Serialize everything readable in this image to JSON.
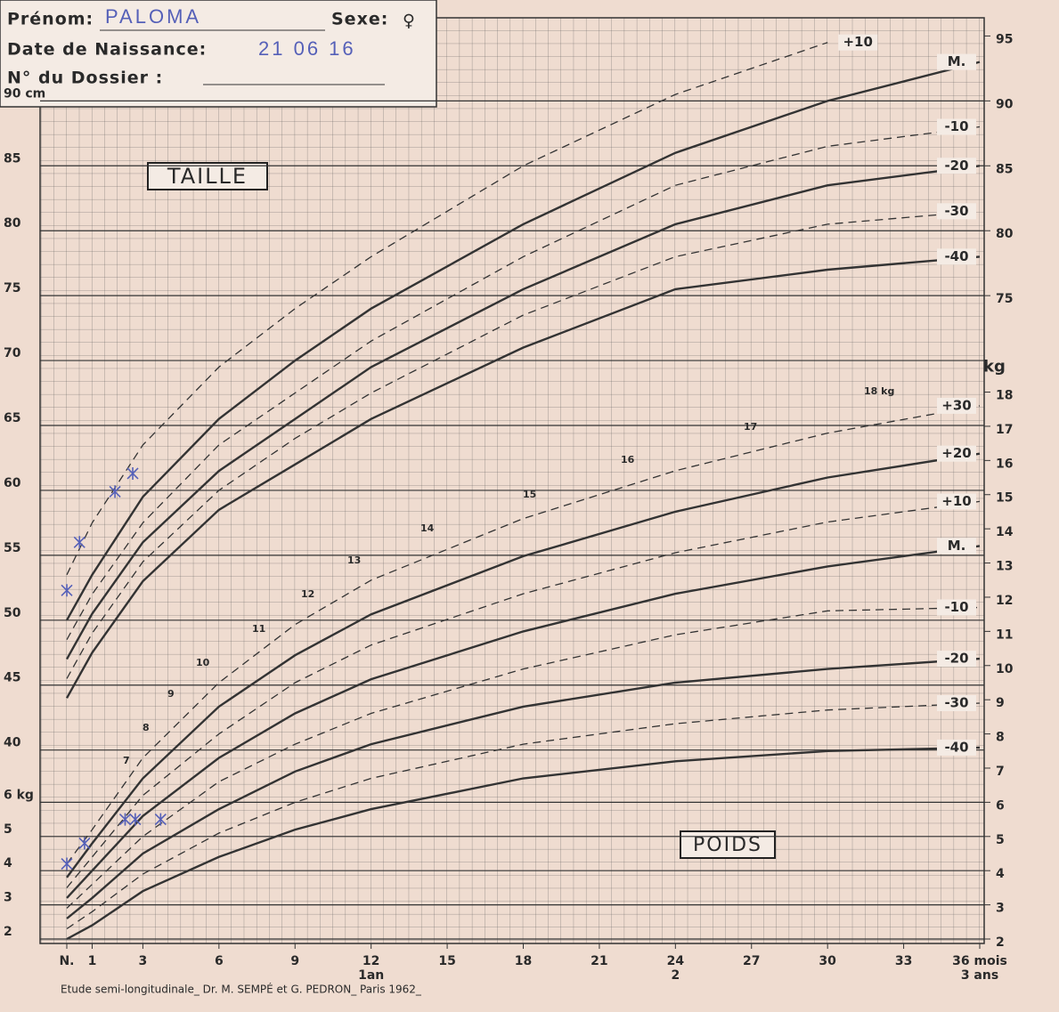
{
  "header": {
    "first_name_label": "Prénom:",
    "first_name": "PALOMA",
    "sex_label": "Sexe:",
    "sex": "♀",
    "birth_label": "Date de Naissance:",
    "birth_date": "21 06 16",
    "file_label": "N° du Dossier :"
  },
  "footer": "Etude semi-longitudinale_ Dr. M. SEMPÉ et G. PEDRON_ Paris 1962_",
  "x_annotations": [
    "1an",
    "2",
    "3 ans"
  ],
  "chart_data": [
    {
      "type": "line",
      "title": "TAILLE",
      "x": [
        0,
        1,
        3,
        6,
        9,
        12,
        18,
        24,
        30,
        36
      ],
      "xlim": [
        0,
        36
      ],
      "xticks": [
        {
          "value": 0,
          "label": "N."
        },
        1,
        3,
        6,
        9,
        12,
        15,
        18,
        21,
        24,
        27,
        30,
        33,
        {
          "value": 36,
          "label": "36 mois"
        }
      ],
      "ylim": [
        25.1,
        96.4
      ],
      "yticks": [
        {
          "value": 90,
          "label": "90 cm"
        },
        85,
        80,
        75,
        70,
        65,
        60,
        55,
        50,
        45,
        40
      ],
      "y2lim": [
        25.1,
        96.4
      ],
      "y2ticks": [
        95,
        90,
        85,
        80,
        75
      ],
      "series": [
        {
          "name": "+10",
          "color": "#333333",
          "dash": true,
          "values": [
            53.5,
            57.5,
            63.5,
            69.5,
            74,
            78,
            85,
            90.5,
            94.5,
            null
          ]
        },
        {
          "name": "M.",
          "color": "#333333",
          "dash": false,
          "values": [
            50,
            53.5,
            59.5,
            65.5,
            70,
            74,
            80.5,
            86,
            90,
            93
          ]
        },
        {
          "name": "-10",
          "color": "#333333",
          "dash": true,
          "values": [
            48.5,
            52,
            57.5,
            63.5,
            67.5,
            71.5,
            78,
            83.5,
            86.5,
            88
          ]
        },
        {
          "name": "-20",
          "color": "#333333",
          "dash": false,
          "values": [
            47,
            50.5,
            56,
            61.5,
            65.5,
            69.5,
            75.5,
            80.5,
            83.5,
            85
          ]
        },
        {
          "name": "-30",
          "color": "#333333",
          "dash": true,
          "values": [
            45.5,
            49,
            54.5,
            60,
            64,
            67.5,
            73.5,
            78,
            80.5,
            81.5
          ]
        },
        {
          "name": "-40",
          "color": "#333333",
          "dash": false,
          "values": [
            44,
            47.5,
            53,
            58.5,
            62,
            65.5,
            71,
            75.5,
            77,
            78
          ]
        }
      ],
      "measurements": {
        "color": "#5560b8",
        "x": [
          0,
          0.5,
          1.9,
          2.6
        ],
        "y": [
          52.3,
          56,
          59.9,
          61.3
        ]
      }
    },
    {
      "type": "line",
      "title": "POIDS",
      "x": [
        0,
        1,
        3,
        6,
        9,
        12,
        18,
        24,
        30,
        36
      ],
      "xlim": [
        0,
        36
      ],
      "ylim": [
        1.87,
        28.95
      ],
      "yticks": [
        {
          "value": 6,
          "label": "6 kg"
        },
        5,
        4,
        3,
        2
      ],
      "y2lim": [
        1.87,
        28.95
      ],
      "y2ticks": [
        18,
        17,
        16,
        15,
        14,
        13,
        12,
        11,
        10,
        9,
        8,
        7,
        6,
        5,
        4,
        3,
        2
      ],
      "y2_unit": "kg",
      "weight_marks": [
        "7",
        "8",
        "9",
        "10",
        "11",
        "12",
        "13",
        "14",
        "15",
        "16",
        "17",
        "18 kg"
      ],
      "series": [
        {
          "name": "+30",
          "color": "#333333",
          "dash": true,
          "values": [
            4.2,
            5.2,
            7.3,
            9.5,
            11.2,
            12.5,
            14.3,
            15.7,
            16.8,
            17.6
          ]
        },
        {
          "name": "+20",
          "color": "#333333",
          "dash": false,
          "values": [
            3.8,
            4.8,
            6.7,
            8.8,
            10.3,
            11.5,
            13.2,
            14.5,
            15.5,
            16.2
          ]
        },
        {
          "name": "+10",
          "color": "#333333",
          "dash": true,
          "values": [
            3.5,
            4.4,
            6.2,
            8,
            9.5,
            10.6,
            12.1,
            13.3,
            14.2,
            14.8
          ]
        },
        {
          "name": "M.",
          "color": "#333333",
          "dash": false,
          "values": [
            3.2,
            4,
            5.6,
            7.3,
            8.6,
            9.6,
            11,
            12.1,
            12.9,
            13.5
          ]
        },
        {
          "name": "-10",
          "color": "#333333",
          "dash": true,
          "values": [
            2.9,
            3.6,
            5,
            6.6,
            7.7,
            8.6,
            9.9,
            10.9,
            11.6,
            11.7
          ]
        },
        {
          "name": "-20",
          "color": "#333333",
          "dash": false,
          "values": [
            2.6,
            3.2,
            4.5,
            5.8,
            6.9,
            7.7,
            8.8,
            9.5,
            9.9,
            10.2
          ]
        },
        {
          "name": "-30",
          "color": "#333333",
          "dash": true,
          "values": [
            2.3,
            2.8,
            3.9,
            5.1,
            6,
            6.7,
            7.7,
            8.3,
            8.7,
            8.9
          ]
        },
        {
          "name": "-40",
          "color": "#333333",
          "dash": false,
          "values": [
            2,
            2.4,
            3.4,
            4.4,
            5.2,
            5.8,
            6.7,
            7.2,
            7.5,
            7.6
          ]
        }
      ],
      "measurements": {
        "color": "#5560b8",
        "x": [
          0,
          0.7,
          2.3,
          2.7,
          3.7
        ],
        "y": [
          4.2,
          4.8,
          5.5,
          5.5,
          5.5
        ]
      }
    }
  ]
}
